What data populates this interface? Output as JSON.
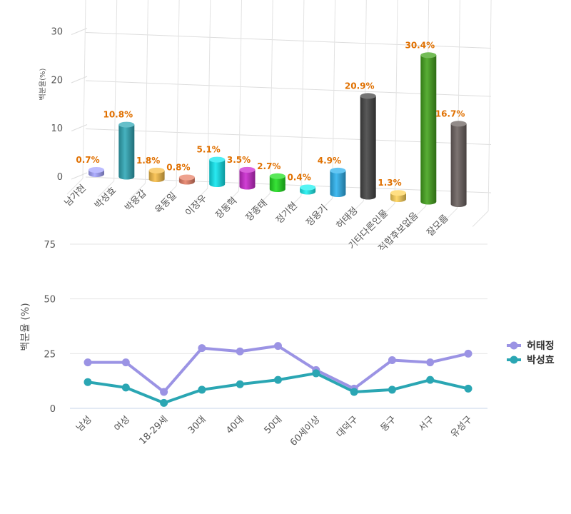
{
  "chart_data": [
    {
      "type": "bar",
      "ylabel": "백분율(%)",
      "yticks": [
        "0",
        "10",
        "20",
        "30"
      ],
      "ylim": [
        0,
        35
      ],
      "grid": true,
      "categories": [
        "남가현",
        "박성효",
        "박용갑",
        "육동일",
        "이장우",
        "장동혁",
        "장종태",
        "정기현",
        "정용기",
        "허태정",
        "기타다른인물",
        "적합후보없음",
        "잘모름"
      ],
      "values": [
        0.7,
        10.8,
        1.8,
        0.8,
        5.1,
        3.5,
        2.7,
        0.4,
        4.9,
        20.9,
        1.3,
        30.4,
        16.7
      ],
      "value_labels": [
        "0.7%",
        "10.8%",
        "1.8%",
        "0.8%",
        "5.1%",
        "3.5%",
        "2.7%",
        "0.4%",
        "4.9%",
        "20.9%",
        "1.3%",
        "30.4%",
        "16.7%"
      ],
      "colors": [
        "#a6a6ff",
        "#31a9b8",
        "#f9c04a",
        "#e8836a",
        "#11e8f0",
        "#cc2bd0",
        "#22e022",
        "#1ef0f0",
        "#2fb3ef",
        "#474747",
        "#ffd45a",
        "#46a51f",
        "#6e6462"
      ],
      "label_color": "#e07000"
    },
    {
      "type": "line",
      "ylabel": "백분율 (%)",
      "yticks": [
        "0",
        "25",
        "50",
        "75"
      ],
      "ylim": [
        0,
        75
      ],
      "grid": true,
      "legend_position": "right",
      "categories": [
        "남성",
        "여성",
        "18-29세",
        "30대",
        "40대",
        "50대",
        "60세이상",
        "대덕구",
        "동구",
        "서구",
        "유성구"
      ],
      "series": [
        {
          "name": "허태정",
          "color": "#9b93e4",
          "values": [
            21,
            21,
            7.5,
            27.5,
            26,
            28.5,
            17.5,
            9,
            22,
            21,
            25
          ]
        },
        {
          "name": "박성효",
          "color": "#2aa6b3",
          "values": [
            12,
            9.5,
            2.5,
            8.5,
            11,
            13,
            16,
            7.5,
            8.5,
            13,
            9
          ]
        }
      ]
    }
  ]
}
